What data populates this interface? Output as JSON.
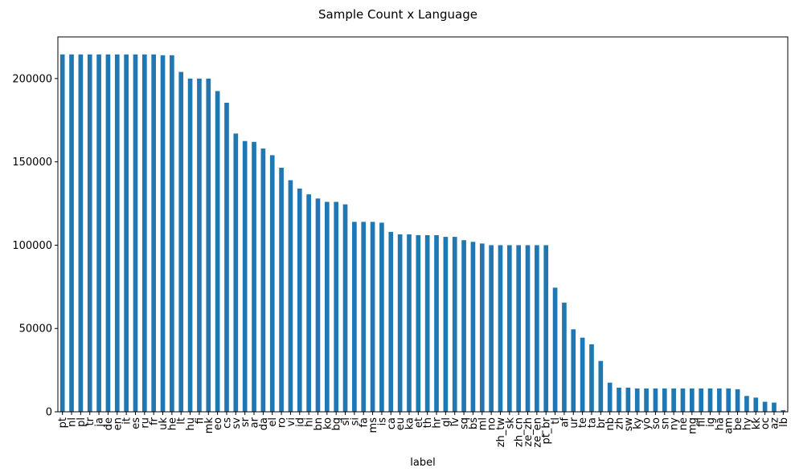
{
  "chart_data": {
    "type": "bar",
    "title": "Sample Count x Language",
    "xlabel": "label",
    "ylabel": "",
    "ylim": [
      0,
      225000
    ],
    "yticks": [
      0,
      50000,
      100000,
      150000,
      200000
    ],
    "grid": false,
    "legend": "none",
    "bar_color": "#1f77b4",
    "categories": [
      "pt",
      "nl",
      "pl",
      "tr",
      "ja",
      "de",
      "en",
      "it",
      "es",
      "ru",
      "fr",
      "uk",
      "he",
      "lt",
      "hu",
      "fi",
      "mk",
      "eo",
      "cs",
      "sv",
      "sr",
      "ar",
      "da",
      "el",
      "ro",
      "vi",
      "id",
      "hi",
      "bn",
      "ko",
      "bg",
      "sl",
      "si",
      "fa",
      "ms",
      "is",
      "ca",
      "eu",
      "ka",
      "et",
      "th",
      "hr",
      "gl",
      "lv",
      "sq",
      "bs",
      "ml",
      "no",
      "zh_tw",
      "sk",
      "zh_cn",
      "ze_zh",
      "ze_en",
      "pt_br",
      "tl",
      "af",
      "ur",
      "te",
      "ta",
      "br",
      "nb",
      "zh",
      "sw",
      "ky",
      "yo",
      "so",
      "sn",
      "ny",
      "ne",
      "mg",
      "fil",
      "ig",
      "ha",
      "am",
      "be",
      "hy",
      "kk",
      "oc",
      "az",
      "lb"
    ],
    "values": [
      214500,
      214500,
      214500,
      214500,
      214500,
      214500,
      214500,
      214500,
      214500,
      214500,
      214500,
      214000,
      214000,
      204000,
      200000,
      200000,
      200000,
      192500,
      185500,
      167000,
      162500,
      162000,
      158000,
      154000,
      146500,
      139000,
      134000,
      130500,
      128000,
      126000,
      126000,
      124500,
      114000,
      114000,
      114000,
      113500,
      108000,
      106500,
      106500,
      106000,
      106000,
      106000,
      105000,
      105000,
      103000,
      102000,
      101000,
      100000,
      100000,
      100000,
      100000,
      100000,
      100000,
      100000,
      74500,
      65500,
      49500,
      44500,
      40500,
      30500,
      17500,
      14500,
      14500,
      14000,
      14000,
      14000,
      14000,
      14000,
      14000,
      14000,
      14000,
      14000,
      14000,
      14000,
      13500,
      9500,
      8500,
      6000,
      5500,
      1000
    ]
  }
}
